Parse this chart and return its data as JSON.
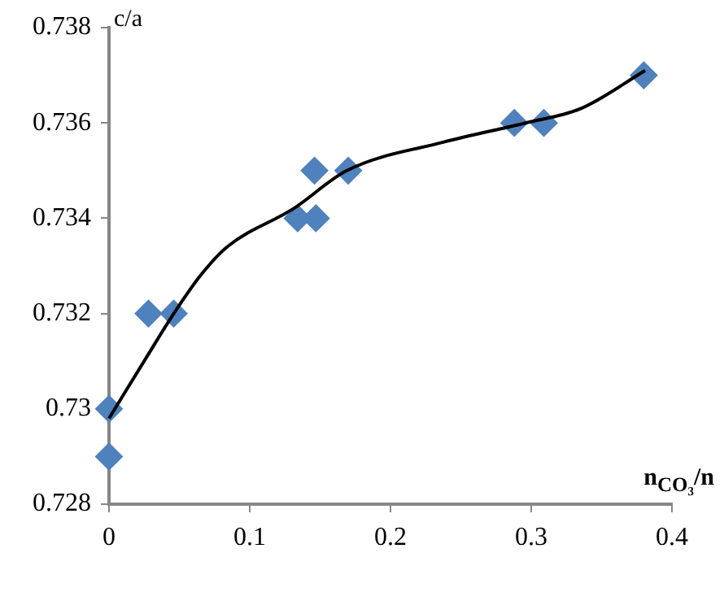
{
  "chart_data": {
    "type": "scatter",
    "xlabel": "n$_{CO₃}$/n",
    "ylabel": "c/a",
    "x": [
      0,
      0,
      0.028,
      0.046,
      0.134,
      0.147,
      0.146,
      0.17,
      0.288,
      0.309,
      0.38
    ],
    "series": [
      {
        "type": "scatter",
        "color": "#4f81bd",
        "marker": "diamond",
        "values": [
          0.73,
          0.729,
          0.732,
          0.732,
          0.734,
          0.734,
          0.735,
          0.735,
          0.736,
          0.736,
          0.737
        ]
      },
      {
        "type": "line",
        "color": "#000000",
        "marker": "none",
        "x": [
          0,
          0.027,
          0.046,
          0.065,
          0.084,
          0.131,
          0.169,
          0.238,
          0.296,
          0.335,
          0.381
        ],
        "values": [
          0.7298,
          0.7311,
          0.732,
          0.7328,
          0.7334,
          0.7342,
          0.735,
          0.7356,
          0.736,
          0.7363,
          0.7371
        ]
      }
    ],
    "xlim": [
      0,
      0.4
    ],
    "xticks": [
      0,
      0.1,
      0.2,
      0.3,
      0.4
    ],
    "ylim": [
      0.728,
      0.738
    ],
    "yticks": [
      0.728,
      0.73,
      0.732,
      0.734,
      0.736,
      0.738
    ],
    "grid": false,
    "legend": false
  }
}
